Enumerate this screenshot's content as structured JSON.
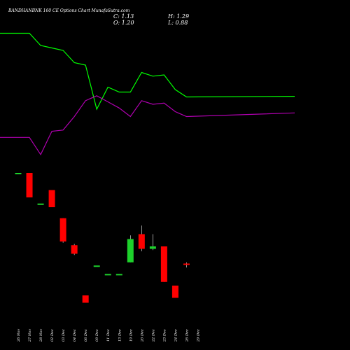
{
  "header": {
    "title": "BANDHANBNK 160  CE Options  Chart MunafaSutra.com",
    "close": "C: 1.13",
    "open": "O: 1.20",
    "high": "H: 1.29",
    "low": "L: 0.88"
  },
  "chart_data": {
    "type": "candlestick",
    "title": "BANDHANBNK 160  CE Options  Chart MunafaSutra.com",
    "categories": [
      "26 Nov",
      "27 Nov",
      "28 Nov",
      "02 Dec",
      "03 Dec",
      "04 Dec",
      "06 Dec",
      "09 Dec",
      "11 Dec",
      "13 Dec",
      "19 Dec",
      "20 Dec",
      "22 Dec",
      "23 Dec",
      "24 Dec",
      "26 Dec",
      "29 Dec"
    ],
    "candles": [
      {
        "date": "26 Nov",
        "open": 8.6,
        "high": 8.6,
        "low": 8.6,
        "close": 8.6,
        "color": "#1dd12b"
      },
      {
        "date": "27 Nov",
        "open": 8.6,
        "high": 8.6,
        "low": 6.6,
        "close": 6.6,
        "color": "#ff0000"
      },
      {
        "date": "28 Nov",
        "open": 6.1,
        "high": 6.1,
        "low": 6.1,
        "close": 6.1,
        "color": "#1dd12b"
      },
      {
        "date": "02 Dec",
        "open": 7.2,
        "high": 7.2,
        "low": 5.8,
        "close": 5.8,
        "color": "#ff0000"
      },
      {
        "date": "03 Dec",
        "open": 4.9,
        "high": 4.9,
        "low": 2.9,
        "close": 3.0,
        "color": "#ff0000"
      },
      {
        "date": "04 Dec",
        "open": 2.7,
        "high": 2.8,
        "low": 1.9,
        "close": 2.0,
        "color": "#ff0000"
      },
      {
        "date": "06 Dec",
        "open": -1.4,
        "high": -1.4,
        "low": -2.0,
        "close": -2.0,
        "color": "#ff0000"
      },
      {
        "date": "09 Dec",
        "open": 1.04,
        "high": 1.04,
        "low": 1.04,
        "close": 1.04,
        "color": "#1dd12b"
      },
      {
        "date": "11 Dec",
        "open": 0.35,
        "high": 0.35,
        "low": 0.35,
        "close": 0.35,
        "color": "#1dd12b"
      },
      {
        "date": "13 Dec",
        "open": 0.35,
        "high": 0.35,
        "low": 0.35,
        "close": 0.35,
        "color": "#1dd12b"
      },
      {
        "date": "19 Dec",
        "open": 1.3,
        "high": 3.5,
        "low": 1.3,
        "close": 3.2,
        "color": "#1dd12b"
      },
      {
        "date": "20 Dec",
        "open": 3.6,
        "high": 4.3,
        "low": 2.2,
        "close": 2.4,
        "color": "#ff0000"
      },
      {
        "date": "22 Dec",
        "open": 2.6,
        "high": 3.6,
        "low": 2.3,
        "close": 2.4,
        "color": "#1dd12b"
      },
      {
        "date": "23 Dec",
        "open": 2.6,
        "high": 2.6,
        "low": -0.3,
        "close": -0.3,
        "color": "#ff0000"
      },
      {
        "date": "24 Dec",
        "open": -0.6,
        "high": -0.6,
        "low": -1.6,
        "close": -1.6,
        "color": "#ff0000"
      },
      {
        "date": "26 Dec",
        "open": 1.2,
        "high": 1.29,
        "low": 0.88,
        "close": 1.13,
        "color": "#ff0000"
      }
    ],
    "lines": [
      {
        "color": "#00ff00",
        "values": [
          20.0,
          20.0,
          19.0,
          18.8,
          18.6,
          17.6,
          17.4,
          13.8,
          15.6,
          15.2,
          15.2,
          16.8,
          16.5,
          16.6,
          15.4,
          14.8,
          14.85
        ]
      },
      {
        "color": "#b000b0",
        "values": [
          11.5,
          11.5,
          10.1,
          12.0,
          12.1,
          13.2,
          14.5,
          14.9,
          14.4,
          13.9,
          13.2,
          14.5,
          14.2,
          14.3,
          13.6,
          13.2,
          13.5
        ]
      }
    ],
    "ylim": [
      -3,
      21
    ]
  }
}
